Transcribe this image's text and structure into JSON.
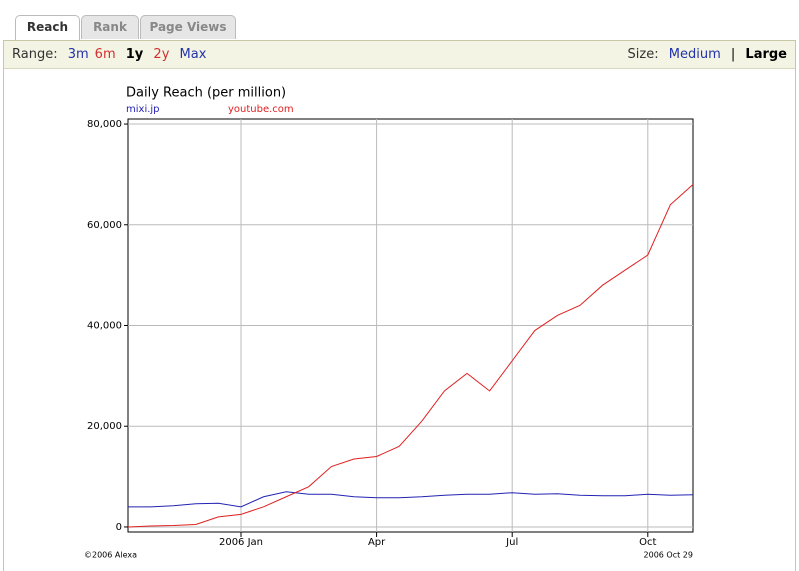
{
  "tabs": [
    "Reach",
    "Rank",
    "Page Views"
  ],
  "range": {
    "label": "Range:",
    "options": [
      "3m",
      "6m",
      "1y",
      "2y",
      "Max"
    ]
  },
  "size": {
    "label": "Size:",
    "options": [
      "Medium",
      "Large"
    ],
    "separator": "|"
  },
  "chart_data": {
    "type": "line",
    "title": "Daily Reach (per million)",
    "categories": [
      null,
      null,
      null,
      null,
      null,
      "2006 Jan",
      null,
      null,
      null,
      null,
      null,
      "Apr",
      null,
      null,
      null,
      null,
      null,
      "Jul",
      null,
      null,
      null,
      null,
      null,
      "Oct",
      null,
      null
    ],
    "series": [
      {
        "name": "mixi.jp",
        "color": "#2323b4",
        "values": [
          4000,
          4000,
          4200,
          4600,
          4700,
          4000,
          6000,
          7000,
          6500,
          6500,
          6000,
          5800,
          5800,
          6000,
          6300,
          6500,
          6500,
          6800,
          6500,
          6600,
          6300,
          6200,
          6200,
          6500,
          6300,
          6400
        ]
      },
      {
        "name": "youtube.com",
        "color": "#e02020",
        "values": [
          0,
          200,
          300,
          500,
          2000,
          2500,
          4000,
          6000,
          8000,
          12000,
          13500,
          14000,
          16000,
          21000,
          27000,
          30500,
          27000,
          33000,
          39000,
          42000,
          44000,
          48000,
          51000,
          54000,
          64000,
          68000
        ]
      }
    ],
    "ylim": [
      -1000,
      81000
    ],
    "yticks": [
      0,
      {
        "value": 20000,
        "label": "20,000"
      },
      {
        "value": 40000,
        "label": "40,000"
      },
      {
        "value": 60000,
        "label": "60,000"
      },
      {
        "value": 80000,
        "label": "80,000"
      }
    ],
    "grid": true,
    "footnote": "©2006 Alexa",
    "date": "2006 Oct 29"
  }
}
